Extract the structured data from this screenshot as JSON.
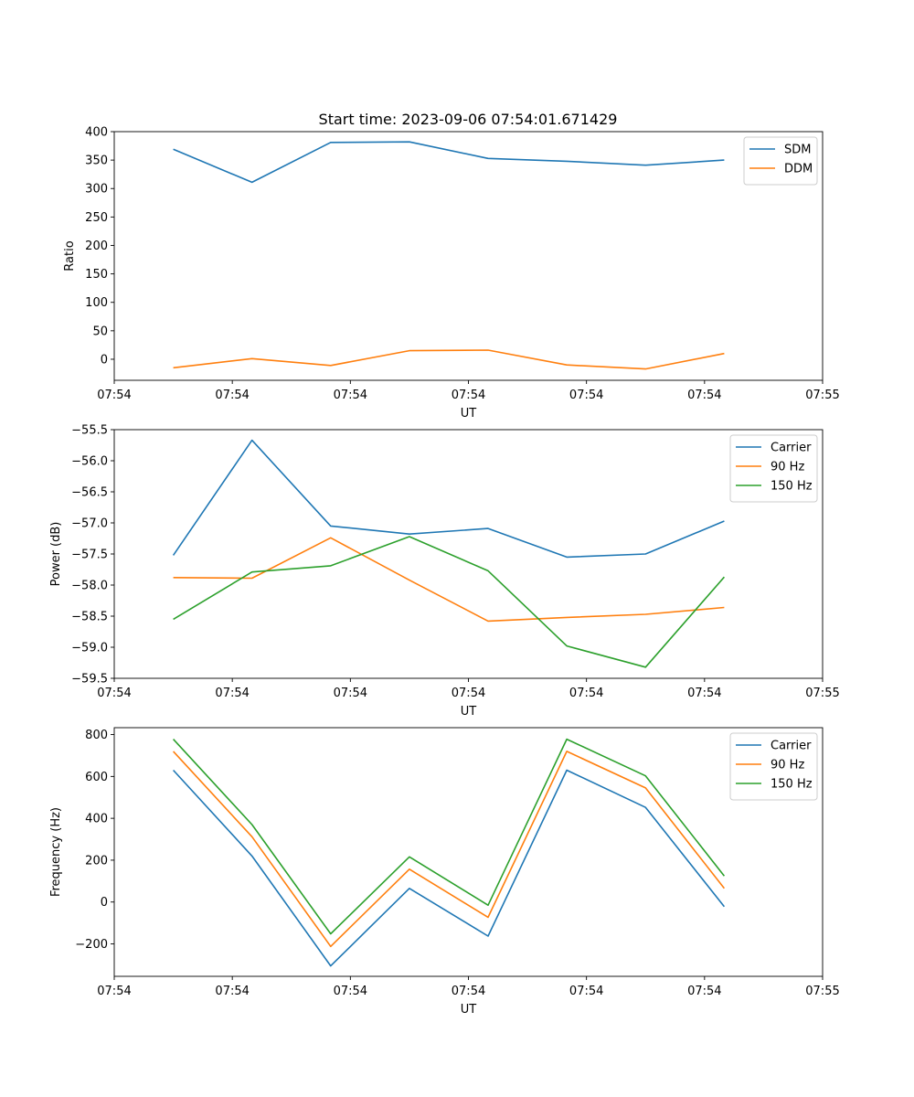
{
  "figure_title": "Start time: 2023-09-06 07:54:01.671429",
  "chart_data": [
    {
      "type": "line",
      "title": "Start time: 2023-09-06 07:54:01.671429",
      "xlabel": "UT",
      "ylabel": "Ratio",
      "x": [
        1,
        2,
        3,
        4,
        5,
        6,
        7,
        8
      ],
      "xlim": [
        0.25,
        9.25
      ],
      "ylim": [
        -37,
        400
      ],
      "yticks": [
        0,
        50,
        100,
        150,
        200,
        250,
        300,
        350,
        400
      ],
      "xtick_positions": [
        0.25,
        1.75,
        3.25,
        4.75,
        6.25,
        7.75,
        9.25
      ],
      "xtick_labels": [
        "07:54",
        "07:54",
        "07:54",
        "07:54",
        "07:54",
        "07:54",
        "07:55"
      ],
      "legend_position": "top-right",
      "series": [
        {
          "name": "SDM",
          "color": "#1f77b4",
          "values": [
            369,
            311,
            381,
            382,
            353,
            348,
            341,
            350
          ]
        },
        {
          "name": "DDM",
          "color": "#ff7f0e",
          "values": [
            -15,
            1,
            -11,
            15,
            16,
            -10,
            -17,
            10
          ]
        }
      ]
    },
    {
      "type": "line",
      "title": "",
      "xlabel": "UT",
      "ylabel": "Power (dB)",
      "x": [
        1,
        2,
        3,
        4,
        5,
        6,
        7,
        8
      ],
      "xlim": [
        0.25,
        9.25
      ],
      "ylim": [
        -59.5,
        -55.5
      ],
      "yticks": [
        -59.5,
        -59.0,
        -58.5,
        -58.0,
        -57.5,
        -57.0,
        -56.5,
        -56.0,
        -55.5
      ],
      "ytick_labels": [
        "−59.5",
        "−59.0",
        "−58.5",
        "−58.0",
        "−57.5",
        "−57.0",
        "−56.5",
        "−56.0",
        "−55.5"
      ],
      "xtick_positions": [
        0.25,
        1.75,
        3.25,
        4.75,
        6.25,
        7.75,
        9.25
      ],
      "xtick_labels": [
        "07:54",
        "07:54",
        "07:54",
        "07:54",
        "07:54",
        "07:54",
        "07:55"
      ],
      "legend_position": "top-right",
      "series": [
        {
          "name": "Carrier",
          "color": "#1f77b4",
          "values": [
            -57.52,
            -55.67,
            -57.05,
            -57.18,
            -57.09,
            -57.55,
            -57.5,
            -56.97
          ]
        },
        {
          "name": "90 Hz",
          "color": "#ff7f0e",
          "values": [
            -57.88,
            -57.89,
            -57.24,
            -57.92,
            -58.58,
            -58.52,
            -58.47,
            -58.36
          ]
        },
        {
          "name": "150 Hz",
          "color": "#2ca02c",
          "values": [
            -58.55,
            -57.79,
            -57.69,
            -57.22,
            -57.77,
            -58.98,
            -59.32,
            -57.87
          ]
        }
      ]
    },
    {
      "type": "line",
      "title": "",
      "xlabel": "UT",
      "ylabel": "Frequency (Hz)",
      "x": [
        1,
        2,
        3,
        4,
        5,
        6,
        7,
        8
      ],
      "xlim": [
        0.25,
        9.25
      ],
      "ylim": [
        -355,
        833
      ],
      "yticks": [
        -200,
        0,
        200,
        400,
        600,
        800
      ],
      "ytick_labels": [
        "−200",
        "0",
        "200",
        "400",
        "600",
        "800"
      ],
      "xtick_positions": [
        0.25,
        1.75,
        3.25,
        4.75,
        6.25,
        7.75,
        9.25
      ],
      "xtick_labels": [
        "07:54",
        "07:54",
        "07:54",
        "07:54",
        "07:54",
        "07:54",
        "07:55"
      ],
      "legend_position": "top-right",
      "series": [
        {
          "name": "Carrier",
          "color": "#1f77b4",
          "values": [
            630,
            220,
            -305,
            65,
            -163,
            630,
            452,
            -22
          ]
        },
        {
          "name": "90 Hz",
          "color": "#ff7f0e",
          "values": [
            720,
            312,
            -212,
            157,
            -73,
            720,
            545,
            65
          ]
        },
        {
          "name": "150 Hz",
          "color": "#2ca02c",
          "values": [
            778,
            370,
            -152,
            216,
            -15,
            778,
            603,
            124
          ]
        }
      ]
    }
  ]
}
